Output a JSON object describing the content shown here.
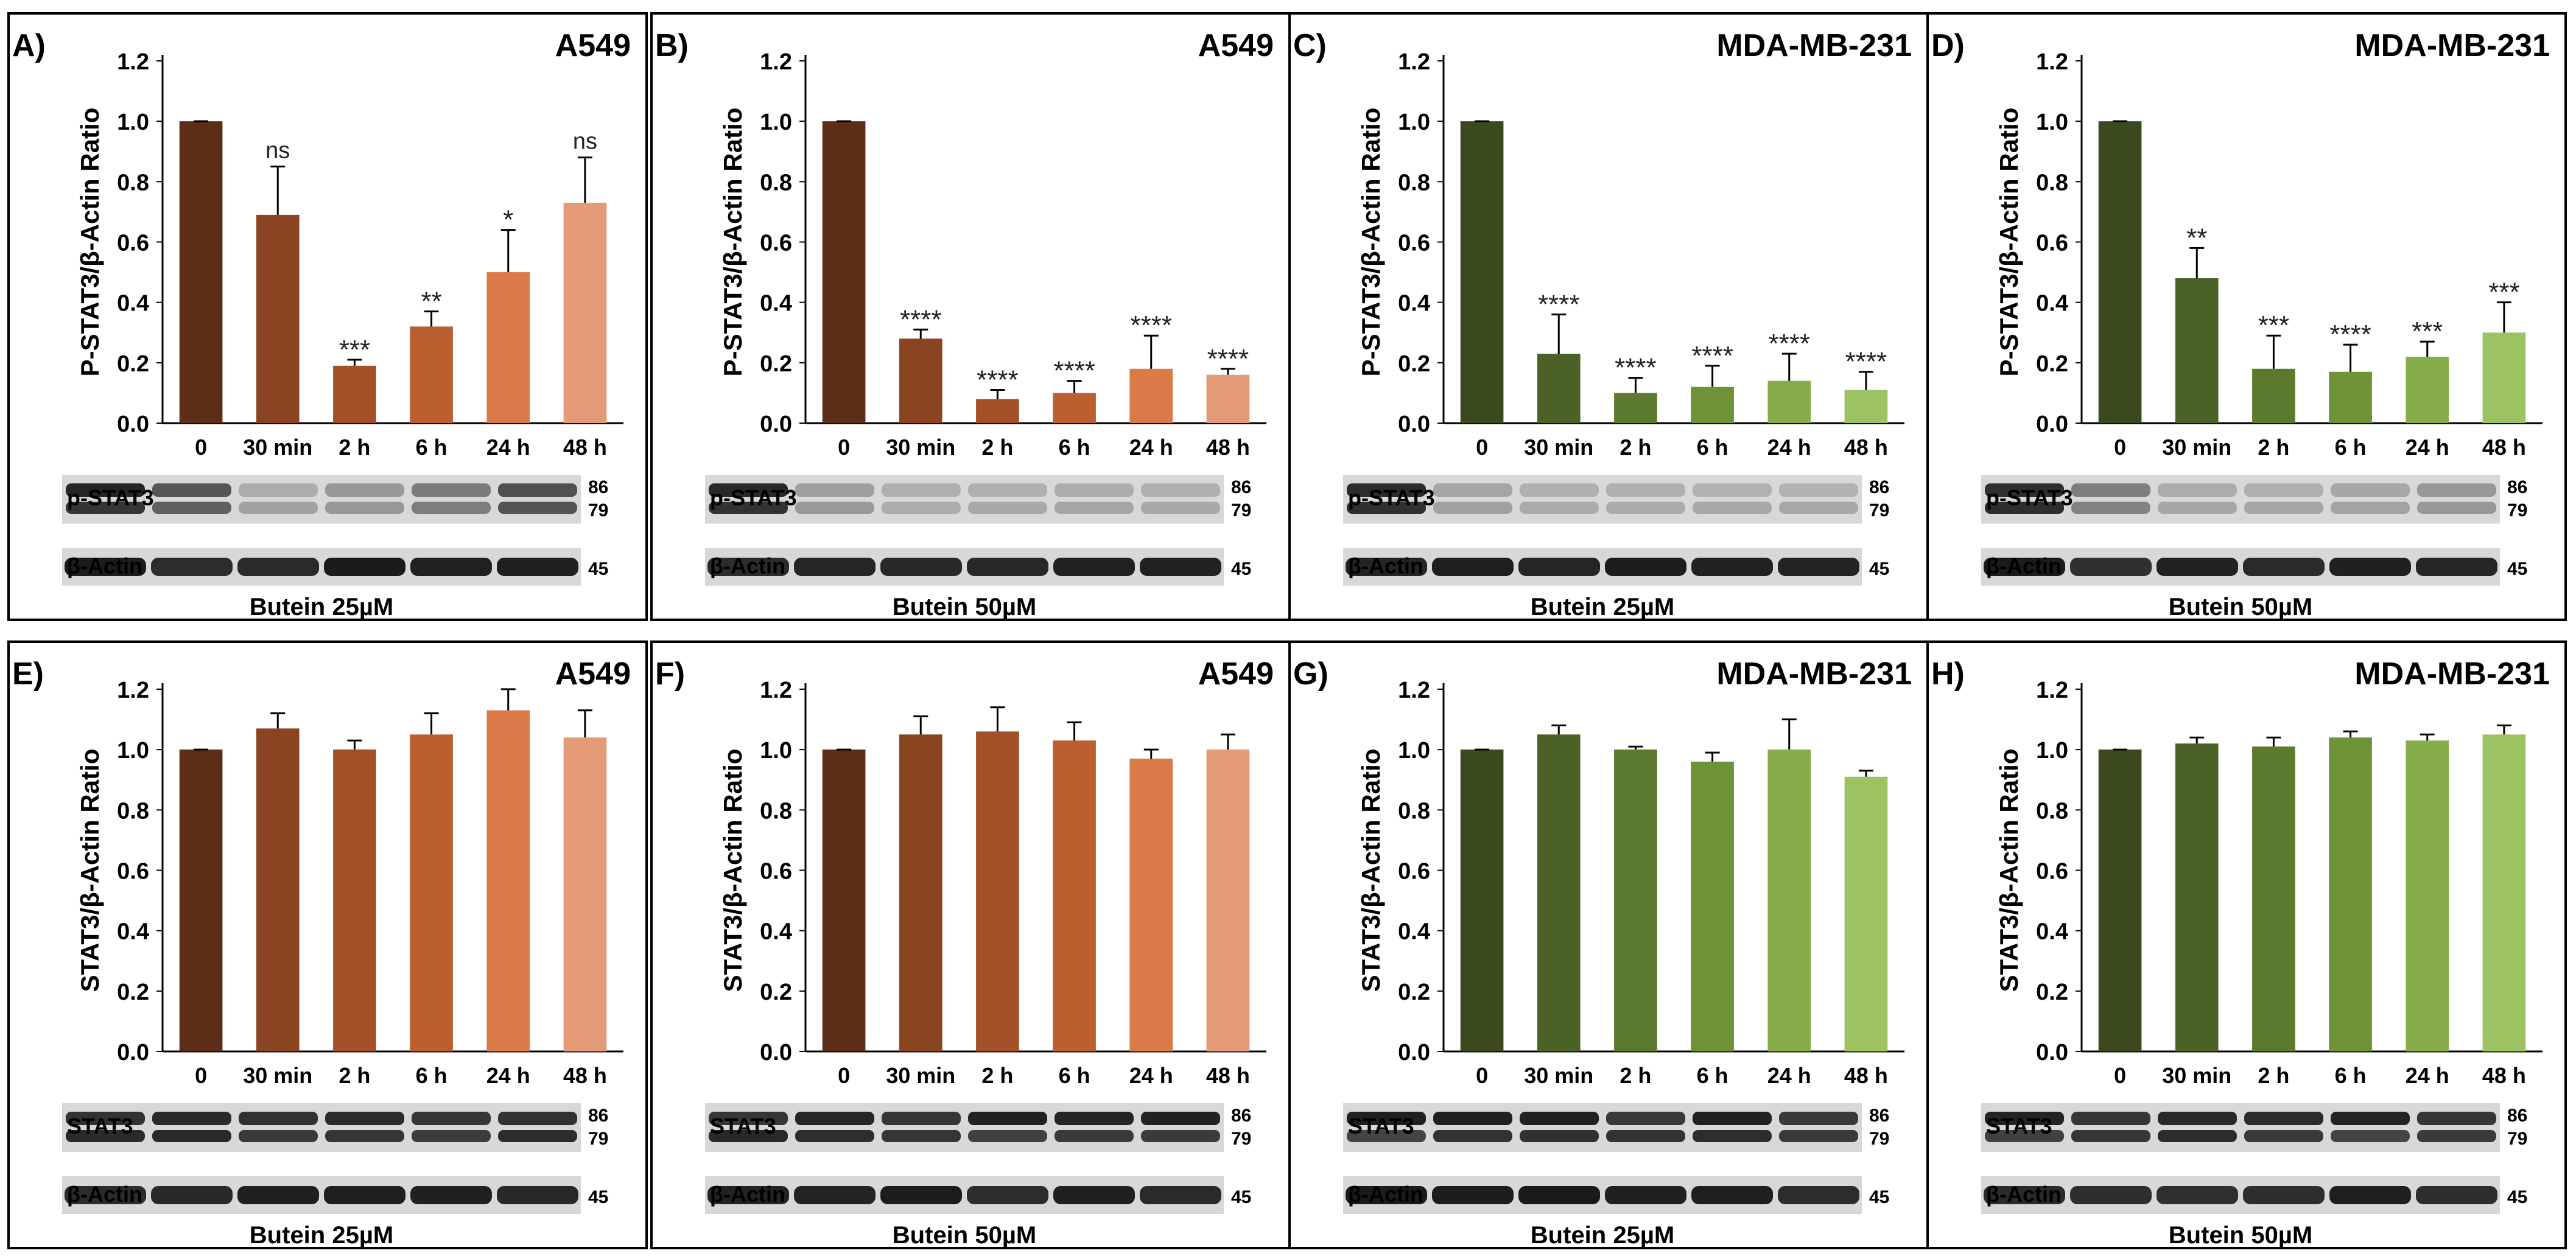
{
  "chart_data": [
    {
      "panel": "A)",
      "title": "A549",
      "type": "bar",
      "ylabel": "P-STAT3/β-Actin Ratio",
      "ylim": [
        0,
        1.2
      ],
      "yticks": [
        "0.0",
        "0.2",
        "0.4",
        "0.6",
        "0.8",
        "1.0",
        "1.2"
      ],
      "categories": [
        "0",
        "30 min",
        "2 h",
        "6 h",
        "24 h",
        "48 h"
      ],
      "values": [
        1.0,
        0.69,
        0.19,
        0.32,
        0.5,
        0.73
      ],
      "errors": [
        0.0,
        0.16,
        0.02,
        0.05,
        0.14,
        0.15
      ],
      "significance": [
        "",
        "ns",
        "***",
        "**",
        "*",
        "ns"
      ],
      "colors": [
        "#5c2d17",
        "#8a4422",
        "#a34f27",
        "#bc5f30",
        "#d97a48",
        "#e39a76"
      ],
      "blot": {
        "rows": [
          {
            "label": "p-STAT3",
            "markers": [
              "86",
              "79"
            ]
          },
          {
            "label": "β-Actin",
            "markers": [
              "45"
            ]
          }
        ],
        "treatment": "Butein 25µM"
      }
    },
    {
      "panel": "B)",
      "title": "A549",
      "type": "bar",
      "ylabel": "P-STAT3/β-Actin Ratio",
      "ylim": [
        0,
        1.2
      ],
      "yticks": [
        "0.0",
        "0.2",
        "0.4",
        "0.6",
        "0.8",
        "1.0",
        "1.2"
      ],
      "categories": [
        "0",
        "30 min",
        "2 h",
        "6 h",
        "24 h",
        "48 h"
      ],
      "values": [
        1.0,
        0.28,
        0.08,
        0.1,
        0.18,
        0.16
      ],
      "errors": [
        0.0,
        0.03,
        0.03,
        0.04,
        0.11,
        0.02
      ],
      "significance": [
        "",
        "****",
        "****",
        "****",
        "****",
        "****"
      ],
      "colors": [
        "#5c2d17",
        "#8a4422",
        "#a34f27",
        "#bc5f30",
        "#d97a48",
        "#e39a76"
      ],
      "blot": {
        "rows": [
          {
            "label": "p-STAT3",
            "markers": [
              "86",
              "79"
            ]
          },
          {
            "label": "β-Actin",
            "markers": [
              "45"
            ]
          }
        ],
        "treatment": "Butein 50µM"
      }
    },
    {
      "panel": "C)",
      "title": "MDA-MB-231",
      "type": "bar",
      "ylabel": "P-STAT3/β-Actin Ratio",
      "ylim": [
        0,
        1.2
      ],
      "yticks": [
        "0.0",
        "0.2",
        "0.4",
        "0.6",
        "0.8",
        "1.0",
        "1.2"
      ],
      "categories": [
        "0",
        "30 min",
        "2 h",
        "6 h",
        "24 h",
        "48 h"
      ],
      "values": [
        1.0,
        0.23,
        0.1,
        0.12,
        0.14,
        0.11
      ],
      "errors": [
        0.0,
        0.13,
        0.05,
        0.07,
        0.09,
        0.06
      ],
      "significance": [
        "",
        "****",
        "****",
        "****",
        "****",
        "****"
      ],
      "colors": [
        "#3a4a1e",
        "#4b6226",
        "#5b7a2e",
        "#6e9237",
        "#86ad4a",
        "#9cc262"
      ],
      "blot": {
        "rows": [
          {
            "label": "p-STAT3",
            "markers": [
              "86",
              "79"
            ]
          },
          {
            "label": "β-Actin",
            "markers": [
              "45"
            ]
          }
        ],
        "treatment": "Butein 25µM"
      }
    },
    {
      "panel": "D)",
      "title": "MDA-MB-231",
      "type": "bar",
      "ylabel": "P-STAT3/β-Actin Ratio",
      "ylim": [
        0,
        1.2
      ],
      "yticks": [
        "0.0",
        "0.2",
        "0.4",
        "0.6",
        "0.8",
        "1.0",
        "1.2"
      ],
      "categories": [
        "0",
        "30 min",
        "2 h",
        "6 h",
        "24 h",
        "48 h"
      ],
      "values": [
        1.0,
        0.48,
        0.18,
        0.17,
        0.22,
        0.3
      ],
      "errors": [
        0.0,
        0.1,
        0.11,
        0.09,
        0.05,
        0.1
      ],
      "significance": [
        "",
        "**",
        "***",
        "****",
        "***",
        "***"
      ],
      "colors": [
        "#3a4a1e",
        "#4b6226",
        "#5b7a2e",
        "#6e9237",
        "#86ad4a",
        "#9cc262"
      ],
      "blot": {
        "rows": [
          {
            "label": "p-STAT3",
            "markers": [
              "86",
              "79"
            ]
          },
          {
            "label": "β-Actin",
            "markers": [
              "45"
            ]
          }
        ],
        "treatment": "Butein 50µM"
      }
    },
    {
      "panel": "E)",
      "title": "A549",
      "type": "bar",
      "ylabel": "STAT3/β-Actin Ratio",
      "ylim": [
        0,
        1.2
      ],
      "yticks": [
        "0.0",
        "0.2",
        "0.4",
        "0.6",
        "0.8",
        "1.0",
        "1.2"
      ],
      "categories": [
        "0",
        "30 min",
        "2 h",
        "6 h",
        "24 h",
        "48 h"
      ],
      "values": [
        1.0,
        1.07,
        1.0,
        1.05,
        1.13,
        1.04
      ],
      "errors": [
        0.0,
        0.05,
        0.03,
        0.07,
        0.07,
        0.09
      ],
      "significance": [
        "",
        "",
        "",
        "",
        "",
        ""
      ],
      "colors": [
        "#5c2d17",
        "#8a4422",
        "#a34f27",
        "#bc5f30",
        "#d97a48",
        "#e39a76"
      ],
      "blot": {
        "rows": [
          {
            "label": "STAT3",
            "markers": [
              "86",
              "79"
            ]
          },
          {
            "label": "β-Actin",
            "markers": [
              "45"
            ]
          }
        ],
        "treatment": "Butein 25µM"
      }
    },
    {
      "panel": "F)",
      "title": "A549",
      "type": "bar",
      "ylabel": "STAT3/β-Actin Ratio",
      "ylim": [
        0,
        1.2
      ],
      "yticks": [
        "0.0",
        "0.2",
        "0.4",
        "0.6",
        "0.8",
        "1.0",
        "1.2"
      ],
      "categories": [
        "0",
        "30 min",
        "2 h",
        "6 h",
        "24 h",
        "48 h"
      ],
      "values": [
        1.0,
        1.05,
        1.06,
        1.03,
        0.97,
        1.0
      ],
      "errors": [
        0.0,
        0.06,
        0.08,
        0.06,
        0.03,
        0.05
      ],
      "significance": [
        "",
        "",
        "",
        "",
        "",
        ""
      ],
      "colors": [
        "#5c2d17",
        "#8a4422",
        "#a34f27",
        "#bc5f30",
        "#d97a48",
        "#e39a76"
      ],
      "blot": {
        "rows": [
          {
            "label": "STAT3",
            "markers": [
              "86",
              "79"
            ]
          },
          {
            "label": "β-Actin",
            "markers": [
              "45"
            ]
          }
        ],
        "treatment": "Butein 50µM"
      }
    },
    {
      "panel": "G)",
      "title": "MDA-MB-231",
      "type": "bar",
      "ylabel": "STAT3/β-Actin Ratio",
      "ylim": [
        0,
        1.2
      ],
      "yticks": [
        "0.0",
        "0.2",
        "0.4",
        "0.6",
        "0.8",
        "1.0",
        "1.2"
      ],
      "categories": [
        "0",
        "30 min",
        "2 h",
        "6 h",
        "24 h",
        "48 h"
      ],
      "values": [
        1.0,
        1.05,
        1.0,
        0.96,
        1.0,
        0.91
      ],
      "errors": [
        0.0,
        0.03,
        0.01,
        0.03,
        0.1,
        0.02
      ],
      "significance": [
        "",
        "",
        "",
        "",
        "",
        ""
      ],
      "colors": [
        "#3a4a1e",
        "#4b6226",
        "#5b7a2e",
        "#6e9237",
        "#86ad4a",
        "#9cc262"
      ],
      "blot": {
        "rows": [
          {
            "label": "STAT3",
            "markers": [
              "86",
              "79"
            ]
          },
          {
            "label": "β-Actin",
            "markers": [
              "45"
            ]
          }
        ],
        "treatment": "Butein 25µM"
      }
    },
    {
      "panel": "H)",
      "title": "MDA-MB-231",
      "type": "bar",
      "ylabel": "STAT3/β-Actin Ratio",
      "ylim": [
        0,
        1.2
      ],
      "yticks": [
        "0.0",
        "0.2",
        "0.4",
        "0.6",
        "0.8",
        "1.0",
        "1.2"
      ],
      "categories": [
        "0",
        "30 min",
        "2 h",
        "6 h",
        "24 h",
        "48 h"
      ],
      "values": [
        1.0,
        1.02,
        1.01,
        1.04,
        1.03,
        1.05
      ],
      "errors": [
        0.0,
        0.02,
        0.03,
        0.02,
        0.02,
        0.03
      ],
      "significance": [
        "",
        "",
        "",
        "",
        "",
        ""
      ],
      "colors": [
        "#3a4a1e",
        "#4b6226",
        "#5b7a2e",
        "#6e9237",
        "#86ad4a",
        "#9cc262"
      ],
      "blot": {
        "rows": [
          {
            "label": "STAT3",
            "markers": [
              "86",
              "79"
            ]
          },
          {
            "label": "β-Actin",
            "markers": [
              "45"
            ]
          }
        ],
        "treatment": "Butein 50µM"
      }
    }
  ]
}
